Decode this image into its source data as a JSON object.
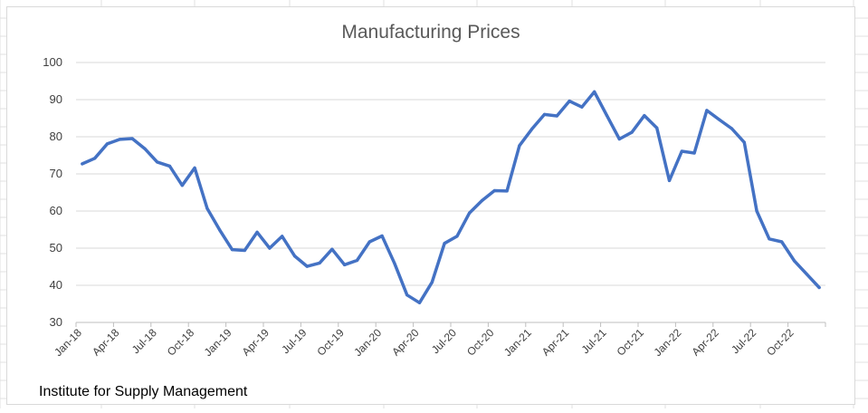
{
  "chart_data": {
    "type": "line",
    "title": "Manufacturing Prices",
    "xlabel": "",
    "ylabel": "",
    "ylim": [
      30,
      100
    ],
    "yticks": [
      30,
      40,
      50,
      60,
      70,
      80,
      90,
      100
    ],
    "grid": "horizontal",
    "legend": "none",
    "x_tick_labels": [
      "Jan-18",
      "Apr-18",
      "Jul-18",
      "Oct-18",
      "Jan-19",
      "Apr-19",
      "Jul-19",
      "Oct-19",
      "Jan-20",
      "Apr-20",
      "Jul-20",
      "Oct-20",
      "Jan-21",
      "Apr-21",
      "Jul-21",
      "Oct-21",
      "Jan-22",
      "Apr-22",
      "Jul-22",
      "Oct-22"
    ],
    "categories": [
      "Jan-18",
      "Feb-18",
      "Mar-18",
      "Apr-18",
      "May-18",
      "Jun-18",
      "Jul-18",
      "Aug-18",
      "Sep-18",
      "Oct-18",
      "Nov-18",
      "Dec-18",
      "Jan-19",
      "Feb-19",
      "Mar-19",
      "Apr-19",
      "May-19",
      "Jun-19",
      "Jul-19",
      "Aug-19",
      "Sep-19",
      "Oct-19",
      "Nov-19",
      "Dec-19",
      "Jan-20",
      "Feb-20",
      "Mar-20",
      "Apr-20",
      "May-20",
      "Jun-20",
      "Jul-20",
      "Aug-20",
      "Sep-20",
      "Oct-20",
      "Nov-20",
      "Dec-20",
      "Jan-21",
      "Feb-21",
      "Mar-21",
      "Apr-21",
      "May-21",
      "Jun-21",
      "Jul-21",
      "Aug-21",
      "Sep-21",
      "Oct-21",
      "Nov-21",
      "Dec-21",
      "Jan-22",
      "Feb-22",
      "Mar-22",
      "Apr-22",
      "May-22",
      "Jun-22",
      "Jul-22",
      "Aug-22",
      "Sep-22",
      "Oct-22",
      "Nov-22",
      "Dec-22"
    ],
    "series": [
      {
        "color": "#4472c4",
        "values": [
          72.7,
          74.2,
          78.1,
          79.3,
          79.5,
          76.8,
          73.2,
          72.1,
          66.9,
          71.6,
          60.7,
          54.9,
          49.6,
          49.4,
          54.3,
          50.0,
          53.2,
          47.9,
          45.1,
          46.0,
          49.7,
          45.5,
          46.7,
          51.7,
          53.3,
          45.9,
          37.4,
          35.3,
          40.8,
          51.3,
          53.2,
          59.5,
          62.8,
          65.5,
          65.4,
          77.6,
          82.1,
          86.0,
          85.6,
          89.6,
          88.0,
          92.1,
          85.7,
          79.4,
          81.2,
          85.7,
          82.4,
          68.2,
          76.1,
          75.6,
          87.1,
          84.6,
          82.2,
          78.5,
          60.0,
          52.5,
          51.7,
          46.6,
          43.0,
          39.4
        ]
      }
    ]
  },
  "source_note": "Institute for Supply Management"
}
